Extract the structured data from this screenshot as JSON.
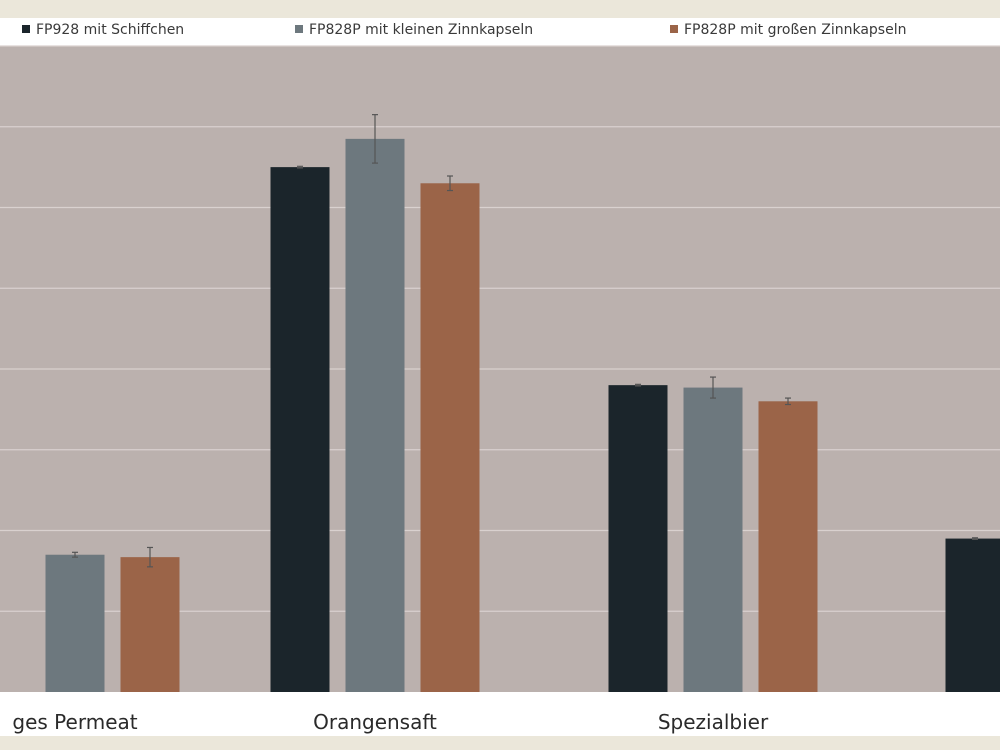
{
  "chart_data": {
    "type": "bar",
    "categories": [
      "ges Permeat",
      "Orangensaft",
      "Spezialbier",
      ""
    ],
    "series": [
      {
        "name": "FP928 mit Schiffchen",
        "color": "#1b252b",
        "values": [
          null,
          6.5,
          3.8,
          1.9
        ],
        "errors": [
          null,
          0.01,
          0.01,
          0.01
        ]
      },
      {
        "name": "FP828P mit kleinen Zinnkapseln",
        "color": "#6d787e",
        "values": [
          1.7,
          6.85,
          3.77,
          null
        ],
        "errors": [
          0.03,
          0.3,
          0.13,
          null
        ]
      },
      {
        "name": "FP828P mit großen Zinnkapseln",
        "color": "#9b6448",
        "values": [
          1.67,
          6.3,
          3.6,
          null
        ],
        "errors": [
          0.12,
          0.09,
          0.04,
          null
        ]
      }
    ],
    "ylim": [
      0,
      8
    ],
    "grid": true,
    "legend": "top"
  },
  "colors": {
    "plot_background": "#bbb1ae",
    "page_background": "#ebe7da",
    "legend_band": "#ffffff",
    "category_band": "#ffffff",
    "gridline": "#d9d1cf",
    "error_bar": "#555555"
  }
}
